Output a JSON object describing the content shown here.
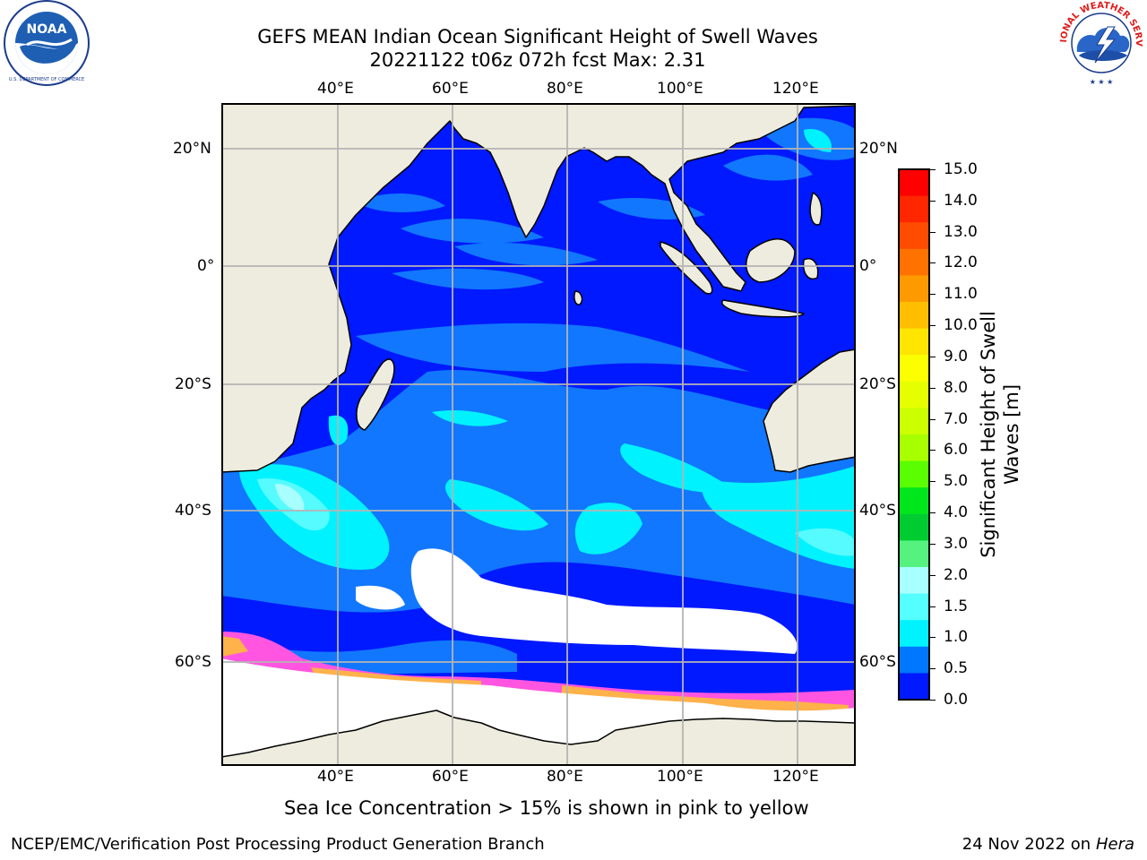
{
  "header": {
    "title_line1": "GEFS MEAN Indian Ocean Significant Height of Swell Waves",
    "title_line2": "20221122 t06z 072h fcst   Max: 2.31"
  },
  "logos": {
    "left": {
      "text": "NOAA",
      "ring_text": "NATIONAL OCEANIC AND ATMOSPHERIC ADMINISTRATION · U.S. DEPARTMENT OF COMMERCE"
    },
    "right": {
      "text": "NATIONAL WEATHER SERVICE"
    }
  },
  "map": {
    "lon_labels": [
      "40°E",
      "60°E",
      "80°E",
      "100°E",
      "120°E"
    ],
    "lat_labels": [
      "20°N",
      "0°",
      "20°S",
      "40°S",
      "60°S"
    ],
    "colors": {
      "land": "#eeecde",
      "ocean_low": "#0019ff",
      "ocean_mid": "#1177ff",
      "cyan": "#00f2ff",
      "light_cyan": "#55fbff",
      "ice_pink": "#ff55e0",
      "ice_orange": "#ffb14a",
      "grid": "#b4b4b4"
    }
  },
  "colorbar": {
    "label_line1": "Significant Height of Swell",
    "label_line2": "Waves [m]",
    "ticks": [
      "15.0",
      "14.0",
      "13.0",
      "12.0",
      "11.0",
      "10.0",
      "9.0",
      "8.0",
      "7.0",
      "6.0",
      "5.0",
      "4.0",
      "3.0",
      "2.0",
      "1.5",
      "1.0",
      "0.5",
      "0.0"
    ],
    "colors": [
      "#ff0000",
      "#ff2600",
      "#ff4c00",
      "#ff7200",
      "#ff9900",
      "#ffbf00",
      "#ffe500",
      "#fcff00",
      "#e5ff00",
      "#ccff00",
      "#a8ff00",
      "#59ff00",
      "#00e61d",
      "#00cc31",
      "#55f27f",
      "#a8ffff",
      "#55ffff",
      "#00f2ff",
      "#0077ff",
      "#0019ff"
    ]
  },
  "notes": {
    "ice": "Sea Ice Concentration > 15% is shown in pink to yellow"
  },
  "footer": {
    "left": "NCEP/EMC/Verification Post Processing Product Generation Branch",
    "right_prefix": "24 Nov 2022 on",
    "right_host": "Hera"
  }
}
